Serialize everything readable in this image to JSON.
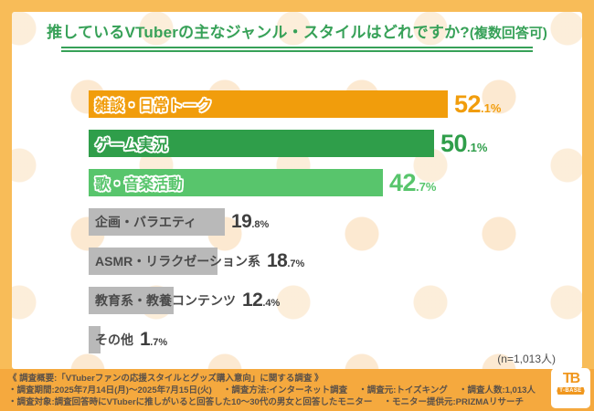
{
  "header": {
    "title_main": "推しているVTuberの主なジャンル・スタイルはどれですか?",
    "title_note": "(複数回答可)",
    "accent_color": "#37A158"
  },
  "chart_data": {
    "type": "bar",
    "orientation": "horizontal",
    "title": "推しているVTuberの主なジャンル・スタイルはどれですか?(複数回答可)",
    "categories": [
      "雑談・日常トーク",
      "ゲーム実況",
      "歌・音楽活動",
      "企画・バラエティ",
      "ASMR・リラクゼーション系",
      "教育系・教養コンテンツ",
      "その他"
    ],
    "values": [
      52.1,
      50.1,
      42.7,
      19.8,
      18.7,
      12.4,
      1.7
    ],
    "value_suffix": "%",
    "bar_colors": [
      "#F19D0C",
      "#2F9E4A",
      "#58C56C",
      "#B9B9B9",
      "#B9B9B9",
      "#B9B9B9",
      "#B9B9B9"
    ],
    "highlighted": [
      true,
      true,
      true,
      false,
      false,
      false,
      false
    ],
    "xlim": [
      0,
      55
    ],
    "grid": false,
    "n_note": "(n=1,013人)"
  },
  "footer": {
    "lines": [
      "《 調査概要:「VTuberファンの応援スタイルとグッズ購入意向」に関する調査 》",
      "・調査期間:2025年7月14日(月)〜2025年7月15日(火)　 ・調査方法:インターネット調査　 ・調査元:トイズキング　 ・調査人数:1,013人",
      "・調査対象:調査回答時にVTuberに推しがいると回答した10〜30代の男女と回答したモニター　 ・モニター提供元:PRIZMAリサーチ"
    ],
    "band_color": "#F5A93E"
  },
  "logo": {
    "monogram": "TB",
    "name": "T-BASE"
  }
}
